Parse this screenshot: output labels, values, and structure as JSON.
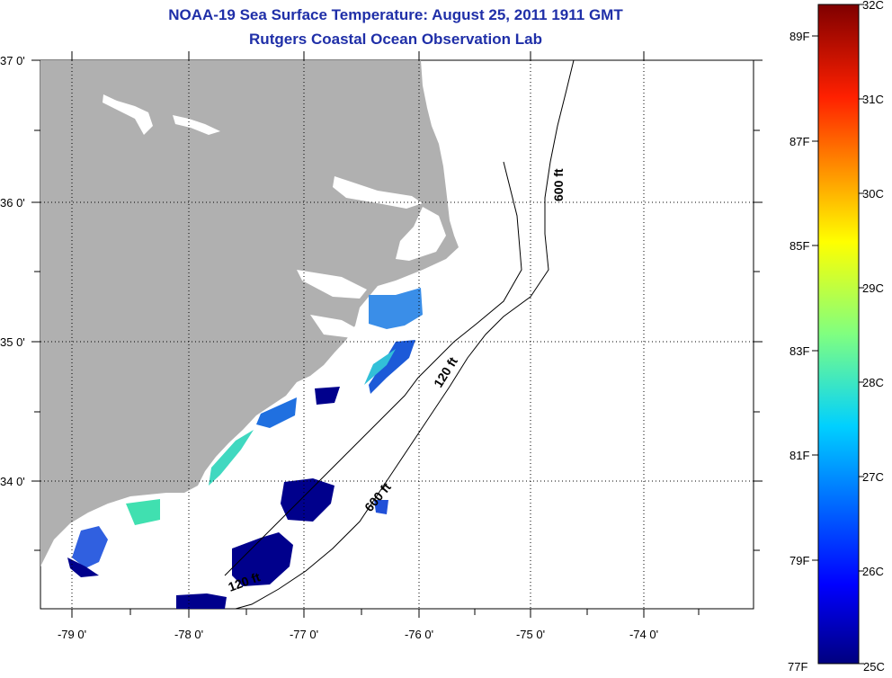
{
  "header": {
    "title": "NOAA-19 Sea Surface Temperature:  August 25, 2011 1911 GMT",
    "subtitle": "Rutgers Coastal Ocean Observation Lab"
  },
  "map": {
    "lat_labels": [
      "37 0'",
      "36 0'",
      "35 0'",
      "34 0'"
    ],
    "lon_labels": [
      "-79 0'",
      "-78 0'",
      "-77 0'",
      "-76 0'",
      "-75 0'",
      "-74 0'"
    ],
    "contours": {
      "c600_north": "600 ft",
      "c120_mid": "120 ft",
      "c600_south": "600 ft",
      "c120_south": "120 ft"
    },
    "colors": {
      "land": "#b0b0b0",
      "cold": "#00008c",
      "mid": "#2090e8",
      "warm": "#40e0b0"
    }
  },
  "colorbar": {
    "celsius": [
      "32C",
      "31C",
      "30C",
      "29C",
      "28C",
      "27C",
      "26C",
      "25C"
    ],
    "fahrenheit": [
      "89F",
      "87F",
      "85F",
      "83F",
      "81F",
      "79F",
      "77F"
    ]
  }
}
